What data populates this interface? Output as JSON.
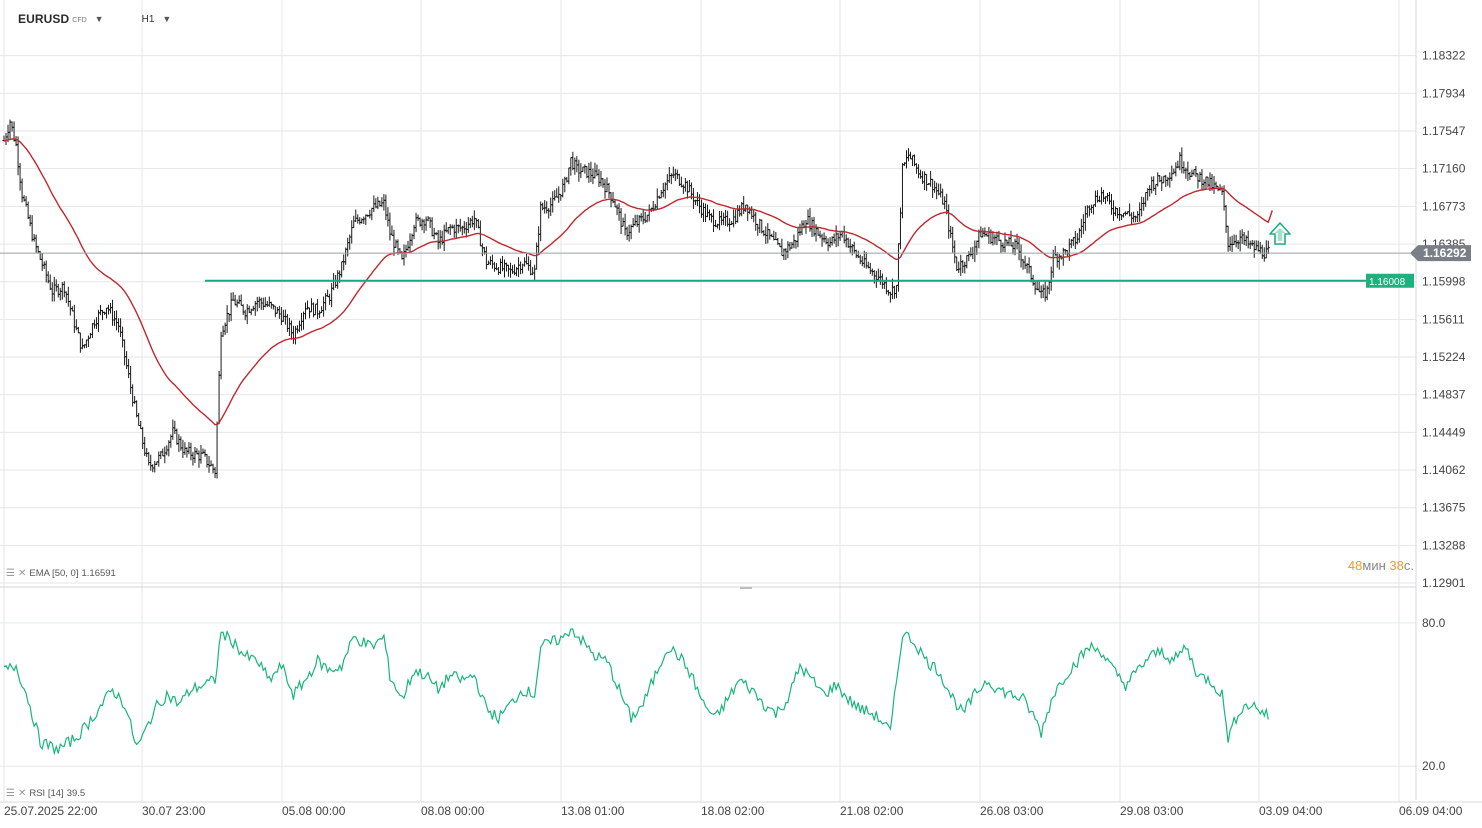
{
  "header": {
    "symbol": "EURUSD",
    "symbol_type": "CFD",
    "timeframe": "H1"
  },
  "icons": {
    "symbol_dropdown": "caret-down-icon",
    "timeframe_dropdown": "caret-down-icon",
    "indicator_settings": "menu-lines-icon",
    "indicator_remove": "close-icon",
    "buy_signal": "up-arrow-icon"
  },
  "colors": {
    "candles": "#1a1a1a",
    "ema": "#c0282d",
    "rsi": "#18b67a",
    "support": "#17a982",
    "price_badge": "#7a7f87",
    "support_badge": "#1cb27e",
    "grid": "#e4e6ea",
    "timer_number": "#f39c12"
  },
  "chart_data": {
    "type": "ohlc",
    "y_ticks": [
      "1.18322",
      "1.17934",
      "1.17547",
      "1.17160",
      "1.16773",
      "1.16385",
      "1.15998",
      "1.15611",
      "1.15224",
      "1.14837",
      "1.14449",
      "1.14062",
      "1.13675",
      "1.13288",
      "1.12901"
    ],
    "ylim": [
      1.12901,
      1.18709
    ],
    "x_tick_labels": [
      "25.07.2025 22:00",
      "30.07 23:00",
      "05.08 00:00",
      "08.08 00:00",
      "13.08 01:00",
      "18.08 02:00",
      "21.08 02:00",
      "26.08 03:00",
      "29.08 03:00",
      "03.09 04:00",
      "06.09 04:00"
    ],
    "price_anchors": [
      [
        0,
        1.1745
      ],
      [
        1,
        1.1765
      ],
      [
        2,
        1.174
      ],
      [
        3,
        1.169
      ],
      [
        5,
        1.164
      ],
      [
        8,
        1.159
      ],
      [
        10,
        1.1595
      ],
      [
        12,
        1.155
      ],
      [
        13,
        1.153
      ],
      [
        15,
        1.156
      ],
      [
        17,
        1.1575
      ],
      [
        19,
        1.1555
      ],
      [
        22,
        1.146
      ],
      [
        24,
        1.141
      ],
      [
        26,
        1.142
      ],
      [
        28,
        1.1445
      ],
      [
        30,
        1.1425
      ],
      [
        33,
        1.142
      ],
      [
        35,
        1.1405
      ],
      [
        36,
        1.155
      ],
      [
        38,
        1.158
      ],
      [
        40,
        1.157
      ],
      [
        42,
        1.158
      ],
      [
        44,
        1.1575
      ],
      [
        46,
        1.1565
      ],
      [
        48,
        1.1545
      ],
      [
        50,
        1.1575
      ],
      [
        52,
        1.157
      ],
      [
        54,
        1.1585
      ],
      [
        56,
        1.1615
      ],
      [
        58,
        1.166
      ],
      [
        61,
        1.1675
      ],
      [
        63,
        1.168
      ],
      [
        64,
        1.165
      ],
      [
        66,
        1.162
      ],
      [
        68,
        1.166
      ],
      [
        70,
        1.1665
      ],
      [
        72,
        1.164
      ],
      [
        74,
        1.1655
      ],
      [
        76,
        1.1655
      ],
      [
        78,
        1.1665
      ],
      [
        80,
        1.162
      ],
      [
        82,
        1.1615
      ],
      [
        84,
        1.161
      ],
      [
        86,
        1.162
      ],
      [
        88,
        1.161
      ],
      [
        89,
        1.1675
      ],
      [
        91,
        1.168
      ],
      [
        93,
        1.17
      ],
      [
        94,
        1.1725
      ],
      [
        95,
        1.1715
      ],
      [
        97,
        1.1712
      ],
      [
        99,
        1.1705
      ],
      [
        101,
        1.1685
      ],
      [
        103,
        1.165
      ],
      [
        105,
        1.166
      ],
      [
        107,
        1.167
      ],
      [
        109,
        1.1695
      ],
      [
        111,
        1.171
      ],
      [
        113,
        1.17
      ],
      [
        115,
        1.168
      ],
      [
        117,
        1.1665
      ],
      [
        119,
        1.166
      ],
      [
        121,
        1.1665
      ],
      [
        123,
        1.168
      ],
      [
        125,
        1.166
      ],
      [
        127,
        1.1645
      ],
      [
        129,
        1.163
      ],
      [
        131,
        1.164
      ],
      [
        133,
        1.1665
      ],
      [
        135,
        1.165
      ],
      [
        137,
        1.164
      ],
      [
        139,
        1.165
      ],
      [
        141,
        1.163
      ],
      [
        143,
        1.1615
      ],
      [
        145,
        1.1605
      ],
      [
        147,
        1.159
      ],
      [
        148,
        1.1595
      ],
      [
        149,
        1.1715
      ],
      [
        150,
        1.173
      ],
      [
        152,
        1.171
      ],
      [
        154,
        1.17
      ],
      [
        156,
        1.168
      ],
      [
        157,
        1.1645
      ],
      [
        158,
        1.1615
      ],
      [
        160,
        1.1625
      ],
      [
        162,
        1.165
      ],
      [
        164,
        1.1645
      ],
      [
        166,
        1.164
      ],
      [
        168,
        1.1635
      ],
      [
        170,
        1.161
      ],
      [
        172,
        1.1585
      ],
      [
        173,
        1.159
      ],
      [
        174,
        1.1625
      ],
      [
        176,
        1.163
      ],
      [
        178,
        1.1645
      ],
      [
        180,
        1.168
      ],
      [
        182,
        1.169
      ],
      [
        184,
        1.1675
      ],
      [
        186,
        1.167
      ],
      [
        188,
        1.1665
      ],
      [
        190,
        1.17
      ],
      [
        192,
        1.1705
      ],
      [
        194,
        1.1715
      ],
      [
        195,
        1.1725
      ],
      [
        197,
        1.171
      ],
      [
        199,
        1.1705
      ],
      [
        201,
        1.1695
      ],
      [
        202,
        1.169
      ],
      [
        203,
        1.164
      ],
      [
        205,
        1.1645
      ],
      [
        207,
        1.1635
      ],
      [
        209,
        1.163
      ],
      [
        210,
        1.1629
      ]
    ],
    "price_badge": {
      "label": "1.16292",
      "value": 1.16292
    },
    "support_line": {
      "label": "1.16008",
      "value": 1.16008
    },
    "ema": {
      "label": "EMA [50, 0]",
      "value": "1.16591"
    },
    "rsi": {
      "label": "RSI [14]",
      "value": "39.5",
      "ylim": [
        10,
        90
      ],
      "y_ticks": [
        "80.0",
        "20.0"
      ],
      "anchors": [
        [
          0,
          60
        ],
        [
          2,
          62
        ],
        [
          4,
          48
        ],
        [
          6,
          30
        ],
        [
          9,
          27
        ],
        [
          12,
          32
        ],
        [
          14,
          38
        ],
        [
          16,
          45
        ],
        [
          18,
          52
        ],
        [
          20,
          46
        ],
        [
          22,
          28
        ],
        [
          23,
          32
        ],
        [
          25,
          44
        ],
        [
          27,
          50
        ],
        [
          29,
          46
        ],
        [
          31,
          52
        ],
        [
          33,
          54
        ],
        [
          35,
          56
        ],
        [
          36,
          76
        ],
        [
          38,
          72
        ],
        [
          40,
          66
        ],
        [
          42,
          64
        ],
        [
          44,
          56
        ],
        [
          46,
          62
        ],
        [
          48,
          50
        ],
        [
          50,
          56
        ],
        [
          52,
          64
        ],
        [
          54,
          60
        ],
        [
          56,
          62
        ],
        [
          58,
          74
        ],
        [
          61,
          70
        ],
        [
          63,
          74
        ],
        [
          64,
          58
        ],
        [
          66,
          48
        ],
        [
          68,
          60
        ],
        [
          70,
          58
        ],
        [
          72,
          52
        ],
        [
          74,
          58
        ],
        [
          76,
          56
        ],
        [
          78,
          58
        ],
        [
          80,
          44
        ],
        [
          82,
          40
        ],
        [
          84,
          46
        ],
        [
          86,
          52
        ],
        [
          88,
          50
        ],
        [
          89,
          70
        ],
        [
          91,
          72
        ],
        [
          93,
          74
        ],
        [
          94,
          78
        ],
        [
          96,
          72
        ],
        [
          98,
          66
        ],
        [
          100,
          64
        ],
        [
          102,
          52
        ],
        [
          104,
          40
        ],
        [
          106,
          46
        ],
        [
          108,
          58
        ],
        [
          110,
          70
        ],
        [
          112,
          66
        ],
        [
          114,
          58
        ],
        [
          116,
          46
        ],
        [
          118,
          40
        ],
        [
          120,
          48
        ],
        [
          122,
          56
        ],
        [
          124,
          52
        ],
        [
          126,
          46
        ],
        [
          128,
          42
        ],
        [
          130,
          48
        ],
        [
          132,
          62
        ],
        [
          134,
          56
        ],
        [
          136,
          50
        ],
        [
          138,
          54
        ],
        [
          140,
          48
        ],
        [
          142,
          44
        ],
        [
          144,
          42
        ],
        [
          146,
          38
        ],
        [
          147,
          34
        ],
        [
          149,
          76
        ],
        [
          151,
          72
        ],
        [
          153,
          64
        ],
        [
          155,
          60
        ],
        [
          157,
          50
        ],
        [
          159,
          42
        ],
        [
          161,
          50
        ],
        [
          163,
          56
        ],
        [
          165,
          52
        ],
        [
          167,
          50
        ],
        [
          169,
          48
        ],
        [
          171,
          40
        ],
        [
          172,
          34
        ],
        [
          174,
          50
        ],
        [
          176,
          58
        ],
        [
          178,
          64
        ],
        [
          180,
          70
        ],
        [
          182,
          68
        ],
        [
          184,
          60
        ],
        [
          186,
          54
        ],
        [
          188,
          60
        ],
        [
          190,
          66
        ],
        [
          192,
          68
        ],
        [
          194,
          64
        ],
        [
          196,
          70
        ],
        [
          198,
          58
        ],
        [
          200,
          56
        ],
        [
          202,
          50
        ],
        [
          203,
          32
        ],
        [
          205,
          44
        ],
        [
          207,
          46
        ],
        [
          209,
          42
        ],
        [
          210,
          40
        ]
      ]
    }
  },
  "timer": {
    "minutes": "48",
    "min_unit": "мин",
    "seconds": "38",
    "sec_unit": "с."
  }
}
